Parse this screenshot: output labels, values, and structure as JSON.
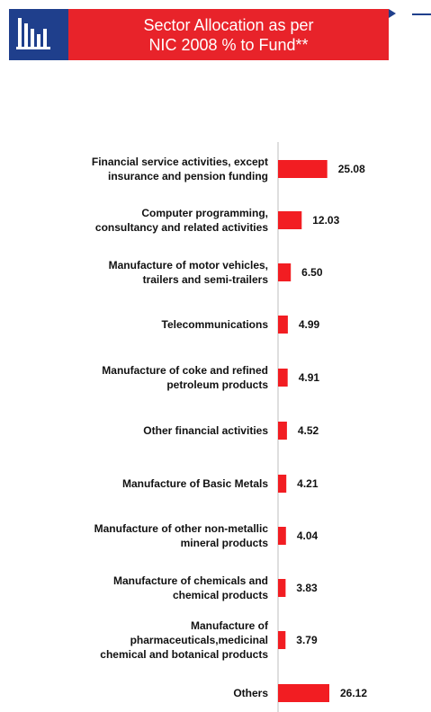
{
  "header": {
    "title_line1": "Sector Allocation as per",
    "title_line2": "NIC 2008 % to Fund**",
    "icon": "bar-chart-icon"
  },
  "colors": {
    "bar": "#f21d22",
    "header_red": "#e8232a",
    "header_blue": "#1f3f8c"
  },
  "chart_data": {
    "type": "bar",
    "orientation": "horizontal",
    "title": "Sector Allocation as per NIC 2008 % to Fund**",
    "categories": [
      [
        "Financial service activities, except",
        "insurance and pension funding"
      ],
      [
        "Computer programming,",
        "consultancy and related activities"
      ],
      [
        "Manufacture of motor vehicles,",
        "trailers and semi-trailers"
      ],
      [
        "Telecommunications"
      ],
      [
        "Manufacture of coke and refined",
        "petroleum products"
      ],
      [
        "Other financial activities"
      ],
      [
        "Manufacture of Basic Metals"
      ],
      [
        "Manufacture of other non-metallic",
        "mineral products"
      ],
      [
        "Manufacture of chemicals and",
        "chemical products"
      ],
      [
        "Manufacture of",
        "pharmaceuticals,medicinal",
        "chemical and botanical products"
      ],
      [
        "Others"
      ]
    ],
    "values": [
      25.08,
      12.03,
      6.5,
      4.99,
      4.91,
      4.52,
      4.21,
      4.04,
      3.83,
      3.79,
      26.12
    ],
    "value_labels": [
      "25.08",
      "12.03",
      "6.50",
      "4.99",
      "4.91",
      "4.52",
      "4.21",
      "4.04",
      "3.83",
      "3.79",
      "26.12"
    ],
    "xlim": [
      0,
      26.12
    ],
    "grid": false,
    "legend": "none"
  }
}
